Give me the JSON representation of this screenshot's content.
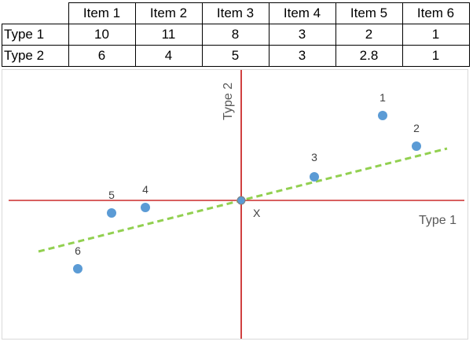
{
  "table": {
    "headers": [
      "Item 1",
      "Item 2",
      "Item 3",
      "Item 4",
      "Item 5",
      "Item 6"
    ],
    "rows": [
      {
        "label": "Type 1",
        "values": [
          "10",
          "11",
          "8",
          "3",
          "2",
          "1"
        ]
      },
      {
        "label": "Type 2",
        "values": [
          "6",
          "4",
          "5",
          "3",
          "2.8",
          "1"
        ]
      }
    ]
  },
  "chart_data": {
    "type": "scatter",
    "xlabel": "Type 1",
    "ylabel": "Type 2",
    "center_label": "X",
    "point_labels": [
      "1",
      "2",
      "3",
      "4",
      "5",
      "6"
    ],
    "x": [
      10,
      11,
      8,
      3,
      2,
      1
    ],
    "y": [
      6,
      4,
      5,
      3,
      2.8,
      1
    ],
    "grid": false,
    "colors": {
      "points": "#5b9bd5",
      "axes": "#c00000",
      "trendline": "#92d050"
    }
  }
}
